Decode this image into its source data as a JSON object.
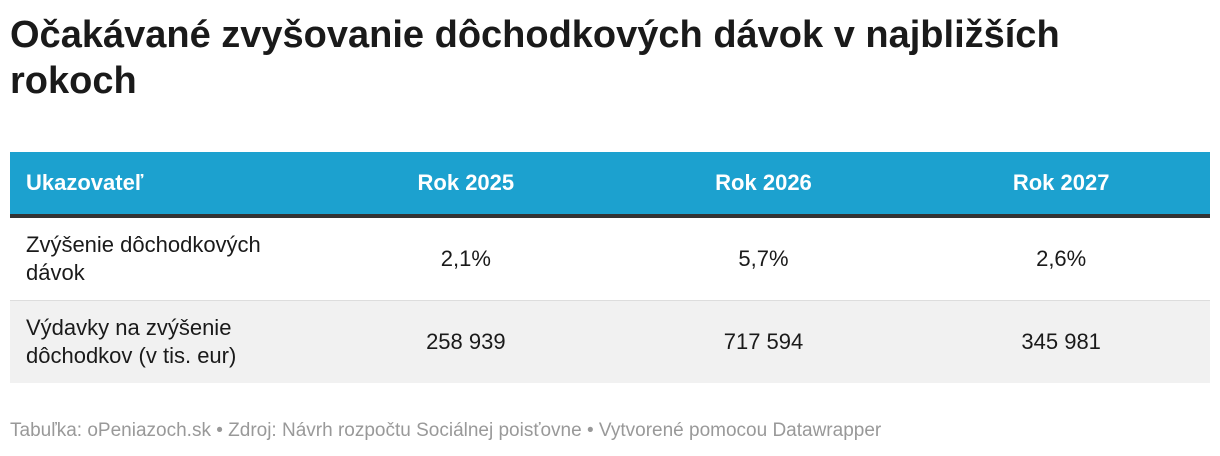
{
  "title": "Očakávané zvyšovanie dôchodkových dávok v najbližších rokoch",
  "table": {
    "header": [
      "Ukazovateľ",
      "Rok 2025",
      "Rok 2026",
      "Rok 2027"
    ],
    "rows": [
      [
        "Zvýšenie dôchodkových dávok",
        "2,1%",
        "5,7%",
        "2,6%"
      ],
      [
        "Výdavky na zvýšenie dôchodkov (v tis. eur)",
        "258 939",
        "717 594",
        "345 981"
      ]
    ]
  },
  "footer": "Tabuľka: oPeniazoch.sk • Zdroj: Návrh rozpočtu Sociálnej poisťovne • Vytvorené pomocou Datawrapper"
}
